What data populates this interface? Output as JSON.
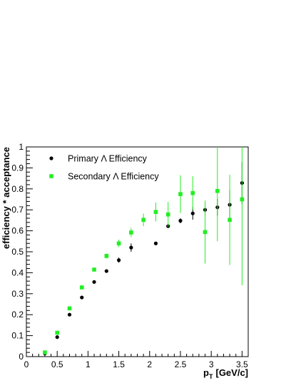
{
  "chart_data": {
    "type": "scatter",
    "xlabel": "p",
    "xlabel_sub": "T",
    "xlabel_unit": "[GeV/c]",
    "ylabel": "efficiency * acceptance",
    "xlim": [
      0,
      3.6
    ],
    "ylim": [
      0,
      1.0
    ],
    "x_ticks": [
      0,
      0.5,
      1,
      1.5,
      2,
      2.5,
      3,
      3.5
    ],
    "x_tick_labels": [
      "0",
      "0.5",
      "1",
      "1.5",
      "2",
      "2.5",
      "3",
      "3.5"
    ],
    "y_ticks": [
      0,
      0.1,
      0.2,
      0.3,
      0.4,
      0.5,
      0.6,
      0.7,
      0.8,
      0.9,
      1.0
    ],
    "y_tick_labels": [
      "0",
      "0.1",
      "0.2",
      "0.3",
      "0.4",
      "0.5",
      "0.6",
      "0.7",
      "0.8",
      "0.9",
      "1"
    ],
    "grid": false,
    "legend_position": "top-left",
    "series": [
      {
        "name": "Primary Λ Efficiency",
        "color": "#000000",
        "marker": "circle",
        "points": [
          {
            "x": 0.3,
            "y": 0.015,
            "err": 0.004
          },
          {
            "x": 0.5,
            "y": 0.093,
            "err": 0.005
          },
          {
            "x": 0.7,
            "y": 0.2,
            "err": 0.006
          },
          {
            "x": 0.9,
            "y": 0.282,
            "err": 0.006
          },
          {
            "x": 1.1,
            "y": 0.356,
            "err": 0.007
          },
          {
            "x": 1.3,
            "y": 0.408,
            "err": 0.008
          },
          {
            "x": 1.5,
            "y": 0.46,
            "err": 0.012
          },
          {
            "x": 1.7,
            "y": 0.52,
            "err": 0.02
          },
          {
            "x": 2.1,
            "y": 0.54,
            "err": 0.004
          },
          {
            "x": 2.3,
            "y": 0.622,
            "err": 0.004
          },
          {
            "x": 2.5,
            "y": 0.648,
            "err": 0.012
          },
          {
            "x": 2.7,
            "y": 0.683,
            "err": 0.03
          },
          {
            "x": 2.9,
            "y": 0.7,
            "err": 0.03
          },
          {
            "x": 3.1,
            "y": 0.712,
            "err": 0.04
          },
          {
            "x": 3.3,
            "y": 0.724,
            "err": 0.07
          },
          {
            "x": 3.5,
            "y": 0.828,
            "err": 0.1
          }
        ]
      },
      {
        "name": "Secondary Λ Efficiency",
        "color": "#22ee22",
        "marker": "square",
        "points": [
          {
            "x": 0.3,
            "y": 0.02,
            "err": 0.003
          },
          {
            "x": 0.5,
            "y": 0.114,
            "err": 0.004
          },
          {
            "x": 0.7,
            "y": 0.23,
            "err": 0.005
          },
          {
            "x": 0.9,
            "y": 0.33,
            "err": 0.006
          },
          {
            "x": 1.1,
            "y": 0.415,
            "err": 0.008
          },
          {
            "x": 1.3,
            "y": 0.48,
            "err": 0.012
          },
          {
            "x": 1.5,
            "y": 0.54,
            "err": 0.018
          },
          {
            "x": 1.7,
            "y": 0.592,
            "err": 0.022
          },
          {
            "x": 1.9,
            "y": 0.652,
            "err": 0.03
          },
          {
            "x": 2.1,
            "y": 0.69,
            "err": 0.045
          },
          {
            "x": 2.3,
            "y": 0.678,
            "err": 0.06
          },
          {
            "x": 2.5,
            "y": 0.775,
            "err": 0.09
          },
          {
            "x": 2.7,
            "y": 0.78,
            "err": 0.08
          },
          {
            "x": 2.9,
            "y": 0.594,
            "err": 0.15
          },
          {
            "x": 3.1,
            "y": 0.79,
            "err": 0.24
          },
          {
            "x": 3.3,
            "y": 0.652,
            "err": 0.215
          },
          {
            "x": 3.5,
            "y": 0.75,
            "err": 0.41
          }
        ]
      }
    ]
  }
}
